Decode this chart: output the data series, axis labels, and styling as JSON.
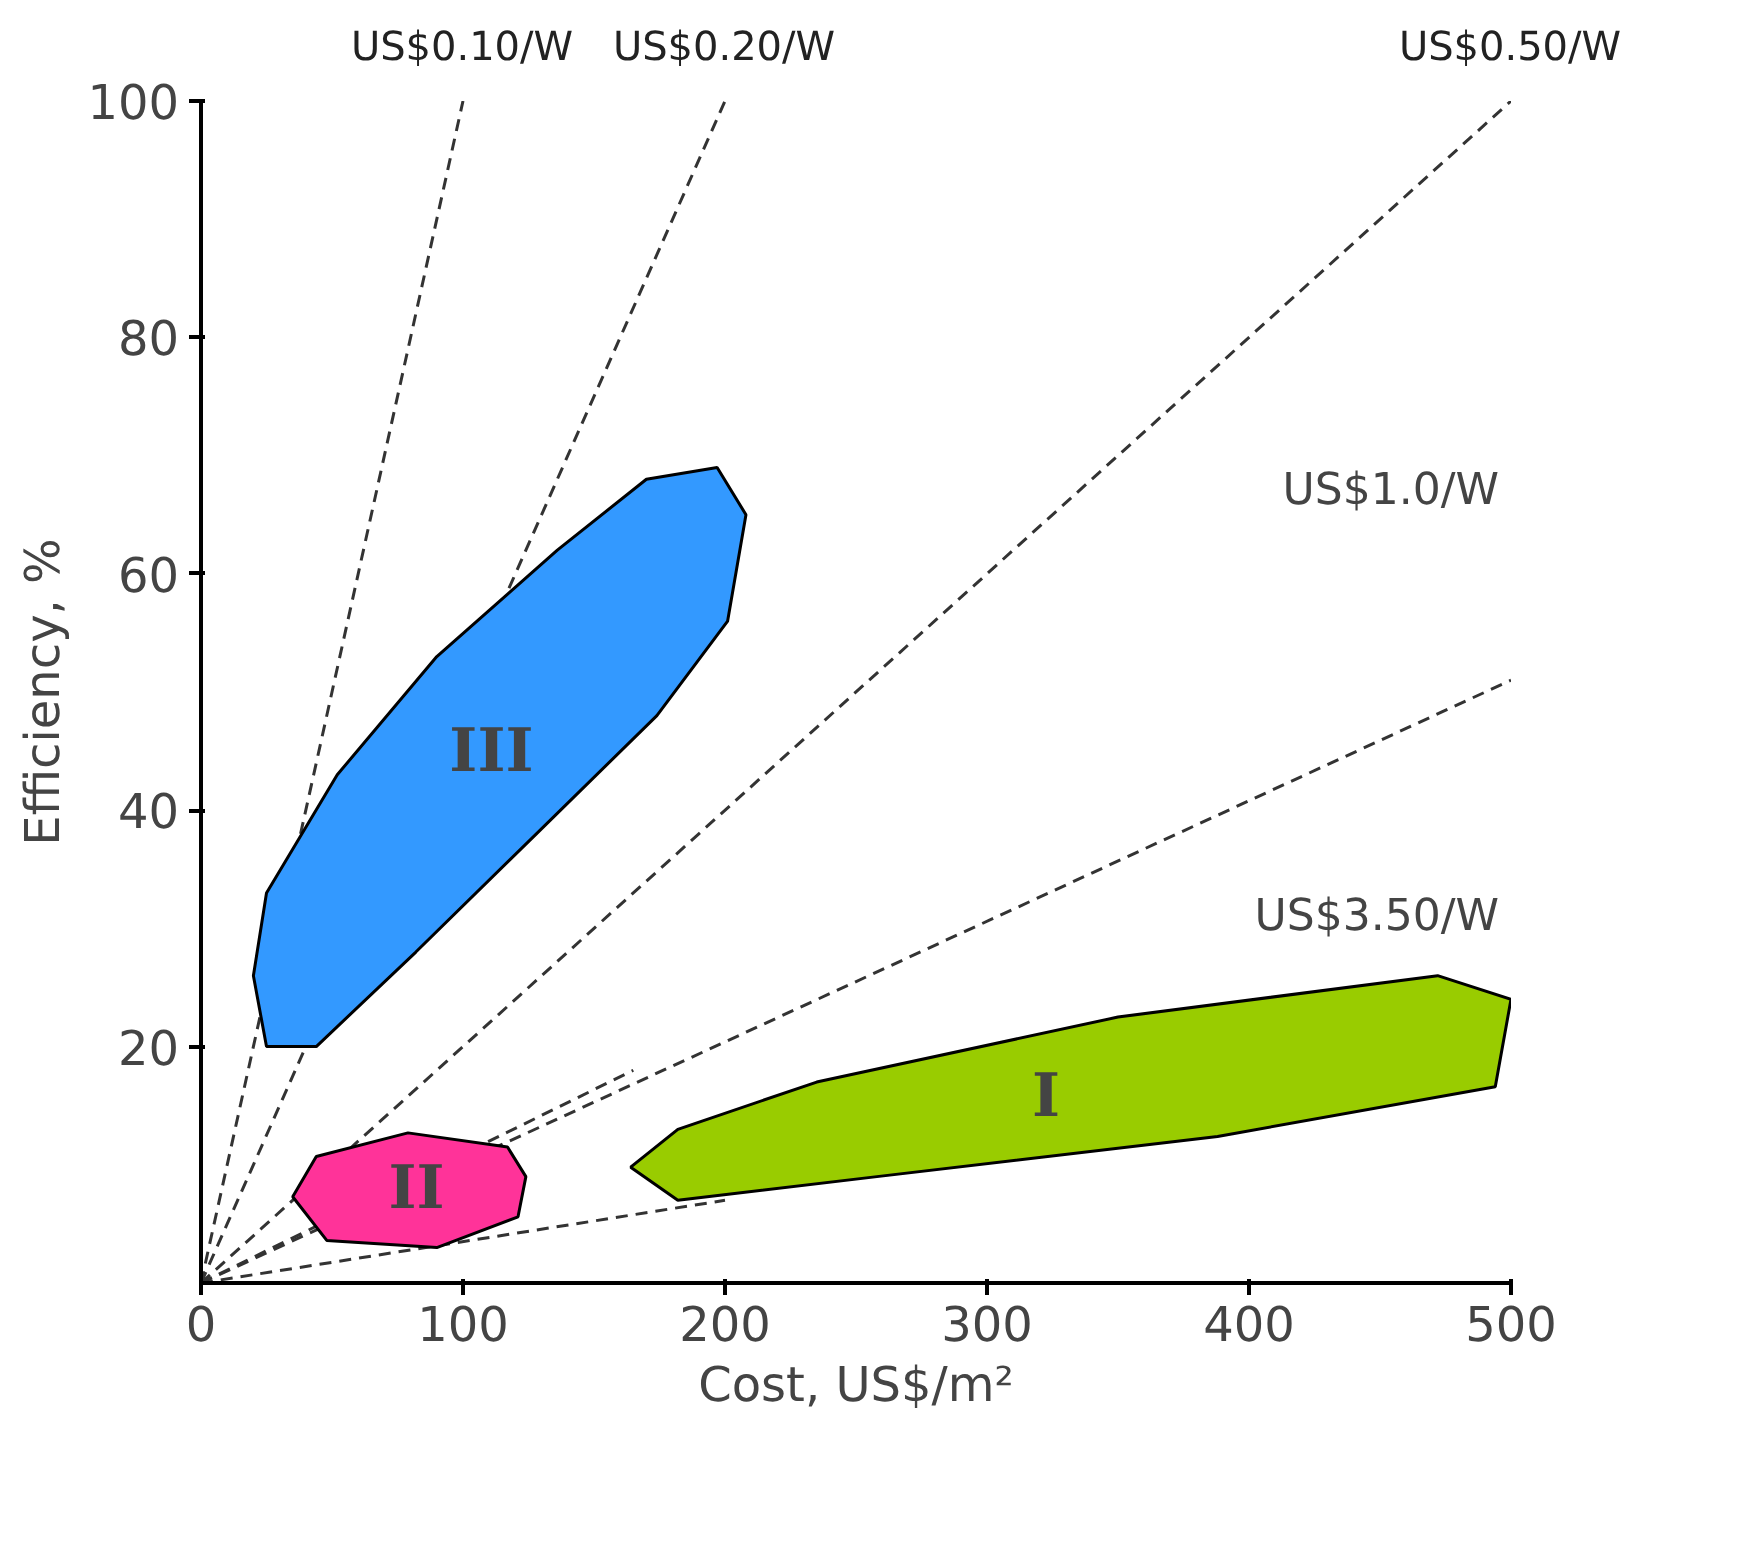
{
  "chart_data": {
    "type": "line",
    "xlabel": "Cost, US$/m²",
    "ylabel": "Efficiency, %",
    "xlim": [
      0,
      500
    ],
    "ylim": [
      0,
      100
    ],
    "xticks": [
      0,
      100,
      200,
      300,
      400,
      500
    ],
    "yticks": [
      20,
      40,
      60,
      80,
      100
    ],
    "grid": false,
    "marker": "none",
    "series": [
      {
        "line_style": "dashed",
        "color": "#333333",
        "x": [
          0,
          100
        ],
        "values": [
          0,
          100
        ]
      },
      {
        "line_style": "dashed",
        "color": "#333333",
        "x": [
          0,
          200
        ],
        "values": [
          0,
          100
        ]
      },
      {
        "line_style": "dashed",
        "color": "#333333",
        "x": [
          0,
          500
        ],
        "values": [
          0,
          100
        ]
      },
      {
        "line_style": "dashed",
        "color": "#333333",
        "x": [
          0,
          500
        ],
        "values": [
          0,
          51
        ]
      },
      {
        "line_style": "dashed",
        "color": "#333333",
        "x": [
          0,
          165
        ],
        "values": [
          0,
          18
        ]
      },
      {
        "line_style": "dashed",
        "color": "#333333",
        "x": [
          0,
          200
        ],
        "values": [
          0,
          7
        ]
      },
      {
        "type": "area",
        "name": "III",
        "color": "#3399ff",
        "x": [
          20,
          25,
          52,
          90,
          136,
          170,
          197,
          208,
          201,
          174,
          128,
          82,
          44,
          25
        ],
        "values": [
          26,
          33,
          43,
          53,
          62,
          68,
          69,
          65,
          56,
          48,
          38,
          28,
          20,
          20
        ]
      },
      {
        "type": "area",
        "name": "II",
        "color": "#ff3399",
        "x": [
          35,
          44,
          79,
          117,
          124,
          121,
          90,
          48
        ],
        "values": [
          7.3,
          10.7,
          12.7,
          11.5,
          9,
          5.6,
          3,
          3.6
        ]
      },
      {
        "type": "area",
        "name": "I",
        "color": "#99cc00",
        "x": [
          164,
          182,
          235,
          350,
          472,
          500,
          494,
          388,
          258,
          182
        ],
        "values": [
          9.8,
          13,
          17,
          22.5,
          26,
          24,
          16.6,
          12.4,
          9,
          7
        ]
      }
    ],
    "annotations": [
      {
        "text": "US$0.10/W",
        "x": 100,
        "y": 100
      },
      {
        "text": "US$0.20/W",
        "x": 200,
        "y": 100
      },
      {
        "text": "US$0.50/W",
        "x": 500,
        "y": 100
      },
      "US$1.0/W",
      "US$3.50/W"
    ]
  }
}
